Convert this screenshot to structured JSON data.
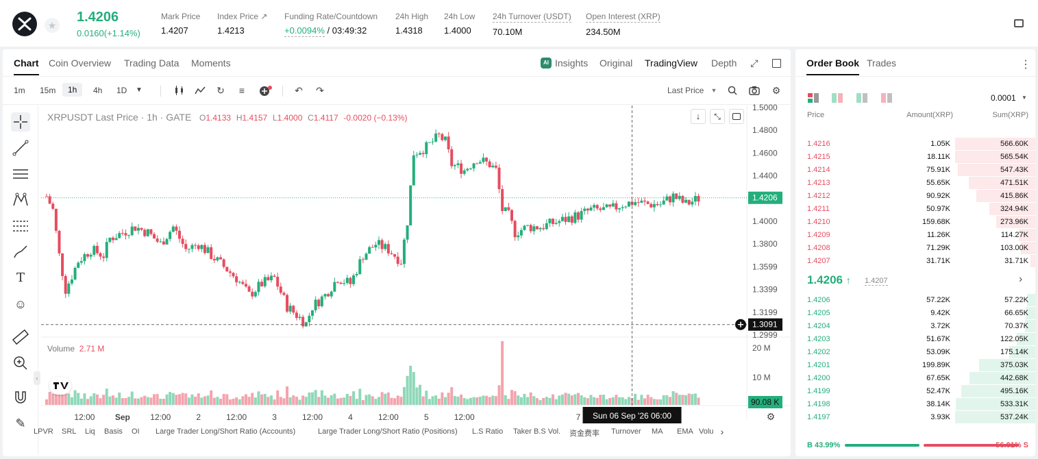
{
  "header": {
    "last_price": "1.4206",
    "change": "0.0160(+1.14%)",
    "stats": [
      {
        "label": "Mark Price",
        "value": "1.4207"
      },
      {
        "label": "Index Price ↗",
        "value": "1.4213"
      },
      {
        "label": "Funding Rate/Countdown",
        "value_a": "+0.0094%",
        "value_b": " / 03:49:32"
      },
      {
        "label": "24h High",
        "value": "1.4318"
      },
      {
        "label": "24h Low",
        "value": "1.4000"
      },
      {
        "label": "24h Turnover (USDT)",
        "value": "70.10M"
      },
      {
        "label": "Open Interest (XRP)",
        "value": "234.50M"
      }
    ]
  },
  "chart_tabs": {
    "left": [
      "Chart",
      "Coin Overview",
      "Trading Data",
      "Moments"
    ],
    "right": [
      "Insights",
      "Original",
      "TradingView",
      "Depth"
    ],
    "ai_badge": "AI"
  },
  "toolbar": {
    "intervals": [
      "1m",
      "15m",
      "1h",
      "4h",
      "1D"
    ],
    "selected": "1h",
    "price_type": "Last Price"
  },
  "legend": {
    "symbol": "XRPUSDT Last Price · 1h · GATE",
    "o_label": "O",
    "o": "1.4133",
    "h_label": "H",
    "h": "1.4157",
    "l_label": "L",
    "l": "1.4000",
    "c_label": "C",
    "c": "1.4117",
    "change": "-0.0020 (−0.13%)"
  },
  "volume_label": {
    "name": "Volume",
    "value": "2.71 M"
  },
  "colors": {
    "up": "#24ae7c",
    "down": "#e54d5f"
  },
  "chart_data": {
    "type": "candlestick",
    "title": "XRPUSDT Last Price · 1h · GATE",
    "y_ticks": [
      "1.5000",
      "1.4800",
      "1.4600",
      "1.4400",
      "1.4200",
      "1.4000",
      "1.3800",
      "1.3599",
      "1.3399",
      "1.3199",
      "1.2999"
    ],
    "x_ticks": [
      "12:00",
      "Sep",
      "12:00",
      "2",
      "12:00",
      "3",
      "12:00",
      "4",
      "12:00",
      "5",
      "12:00",
      "7"
    ],
    "x_tick_values": [
      12,
      24,
      36,
      48,
      60,
      72,
      84,
      96,
      108,
      120,
      132,
      168
    ],
    "ylim": [
      1.2999,
      1.5
    ],
    "current_price": "1.4206",
    "crosshair_price": "1.3091",
    "crosshair_time": "Sun 06 Sep '26   06:00",
    "volume_ticks": [
      "20 M",
      "10 M"
    ],
    "volume_current": "90.08 K",
    "close_points": [
      [
        0,
        1.422
      ],
      [
        2,
        1.41
      ],
      [
        4,
        1.37
      ],
      [
        6,
        1.34
      ],
      [
        8,
        1.352
      ],
      [
        10,
        1.365
      ],
      [
        14,
        1.375
      ],
      [
        18,
        1.37
      ],
      [
        20,
        1.385
      ],
      [
        24,
        1.39
      ],
      [
        28,
        1.395
      ],
      [
        32,
        1.39
      ],
      [
        36,
        1.38
      ],
      [
        40,
        1.395
      ],
      [
        44,
        1.375
      ],
      [
        48,
        1.38
      ],
      [
        52,
        1.37
      ],
      [
        56,
        1.36
      ],
      [
        60,
        1.35
      ],
      [
        64,
        1.335
      ],
      [
        68,
        1.345
      ],
      [
        72,
        1.35
      ],
      [
        76,
        1.325
      ],
      [
        80,
        1.315
      ],
      [
        82,
        1.31
      ],
      [
        84,
        1.325
      ],
      [
        88,
        1.335
      ],
      [
        92,
        1.35
      ],
      [
        96,
        1.345
      ],
      [
        100,
        1.37
      ],
      [
        104,
        1.38
      ],
      [
        108,
        1.375
      ],
      [
        112,
        1.365
      ],
      [
        114,
        1.4
      ],
      [
        116,
        1.46
      ],
      [
        120,
        1.465
      ],
      [
        124,
        1.475
      ],
      [
        126,
        1.47
      ],
      [
        128,
        1.45
      ],
      [
        132,
        1.445
      ],
      [
        136,
        1.455
      ],
      [
        140,
        1.45
      ],
      [
        142,
        1.445
      ],
      [
        144,
        1.41
      ],
      [
        146,
        1.405
      ],
      [
        148,
        1.39
      ],
      [
        152,
        1.395
      ],
      [
        156,
        1.395
      ],
      [
        162,
        1.4
      ],
      [
        168,
        1.405
      ],
      [
        172,
        1.41
      ],
      [
        178,
        1.41
      ],
      [
        182,
        1.415
      ],
      [
        186,
        1.417
      ],
      [
        190,
        1.415
      ],
      [
        194,
        1.415
      ],
      [
        198,
        1.422
      ],
      [
        202,
        1.415
      ],
      [
        206,
        1.42
      ]
    ],
    "volume_spike_index": 144
  },
  "draw_tools": [
    "crosshair-icon",
    "trend-line-icon",
    "horizontal-lines-icon",
    "pattern-icon",
    "fib-icon",
    "brush-icon",
    "text-icon",
    "emoji-icon",
    "ruler-icon",
    "zoom-icon",
    "magnet-icon",
    "pencil-icon"
  ],
  "indicators": [
    "LPVR",
    "SRL",
    "Liq",
    "Basis",
    "OI",
    "Large Trader Long/Short Ratio (Accounts)",
    "Large Trader Long/Short Ratio (Positions)",
    "L.S Ratio",
    "Taker B.S Vol.",
    "资金费率",
    "Turnover",
    "MA",
    "EMA",
    "Volu"
  ],
  "order_book": {
    "tabs": [
      "Order Book",
      "Trades"
    ],
    "precision": "0.0001",
    "col_price": "Price",
    "col_amount": "Amount(XRP)",
    "col_sum": "Sum(XRP)",
    "asks": [
      {
        "price": "1.4216",
        "amount": "1.05K",
        "sum": "566.60K",
        "depth": 1.0
      },
      {
        "price": "1.4215",
        "amount": "18.11K",
        "sum": "565.54K",
        "depth": 0.998
      },
      {
        "price": "1.4214",
        "amount": "75.91K",
        "sum": "547.43K",
        "depth": 0.966
      },
      {
        "price": "1.4213",
        "amount": "55.65K",
        "sum": "471.51K",
        "depth": 0.832
      },
      {
        "price": "1.4212",
        "amount": "90.92K",
        "sum": "415.86K",
        "depth": 0.734
      },
      {
        "price": "1.4211",
        "amount": "50.97K",
        "sum": "324.94K",
        "depth": 0.574
      },
      {
        "price": "1.4210",
        "amount": "159.68K",
        "sum": "273.96K",
        "depth": 0.484
      },
      {
        "price": "1.4209",
        "amount": "11.26K",
        "sum": "114.27K",
        "depth": 0.202
      },
      {
        "price": "1.4208",
        "amount": "71.29K",
        "sum": "103.00K",
        "depth": 0.182
      },
      {
        "price": "1.4207",
        "amount": "31.71K",
        "sum": "31.71K",
        "depth": 0.056
      }
    ],
    "mid_price": "1.4206",
    "mid_arrow": "↑",
    "mark_price": "1.4207",
    "bids": [
      {
        "price": "1.4206",
        "amount": "57.22K",
        "sum": "57.22K",
        "depth": 0.106
      },
      {
        "price": "1.4205",
        "amount": "9.42K",
        "sum": "66.65K",
        "depth": 0.124
      },
      {
        "price": "1.4204",
        "amount": "3.72K",
        "sum": "70.37K",
        "depth": 0.131
      },
      {
        "price": "1.4203",
        "amount": "51.67K",
        "sum": "122.05K",
        "depth": 0.227
      },
      {
        "price": "1.4202",
        "amount": "53.09K",
        "sum": "175.14K",
        "depth": 0.326
      },
      {
        "price": "1.4201",
        "amount": "199.89K",
        "sum": "375.03K",
        "depth": 0.698
      },
      {
        "price": "1.4200",
        "amount": "67.65K",
        "sum": "442.68K",
        "depth": 0.823
      },
      {
        "price": "1.4199",
        "amount": "52.47K",
        "sum": "495.16K",
        "depth": 0.921
      },
      {
        "price": "1.4198",
        "amount": "38.14K",
        "sum": "533.31K",
        "depth": 0.992
      },
      {
        "price": "1.4197",
        "amount": "3.93K",
        "sum": "537.24K",
        "depth": 1.0
      }
    ],
    "buy_ratio": "B 43.99%",
    "sell_ratio": "56.01% S",
    "buy_fraction": 0.4399
  }
}
